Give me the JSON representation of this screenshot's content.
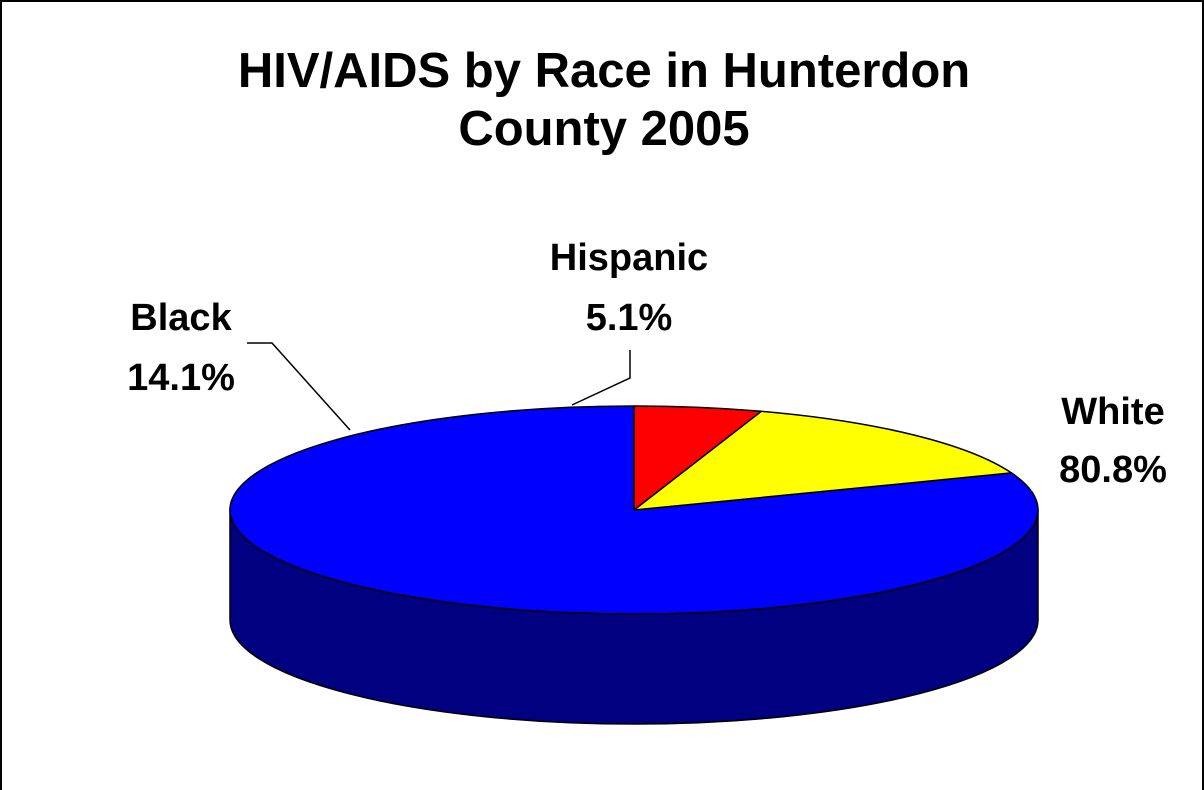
{
  "chart_data": {
    "type": "pie",
    "title_lines": [
      "HIV/AIDS by Race in Hunterdon",
      "County 2005"
    ],
    "slices": [
      {
        "name": "White",
        "value": 80.8,
        "label": "80.8%",
        "color": "#0000FF",
        "side_color": "#000080"
      },
      {
        "name": "Black",
        "value": 14.1,
        "label": "14.1%",
        "color": "#FFFF00",
        "side_color": "#808000"
      },
      {
        "name": "Hispanic",
        "value": 5.1,
        "label": "5.1%",
        "color": "#FF0000",
        "side_color": "#800000"
      }
    ],
    "style": "3d",
    "legend": "none"
  }
}
